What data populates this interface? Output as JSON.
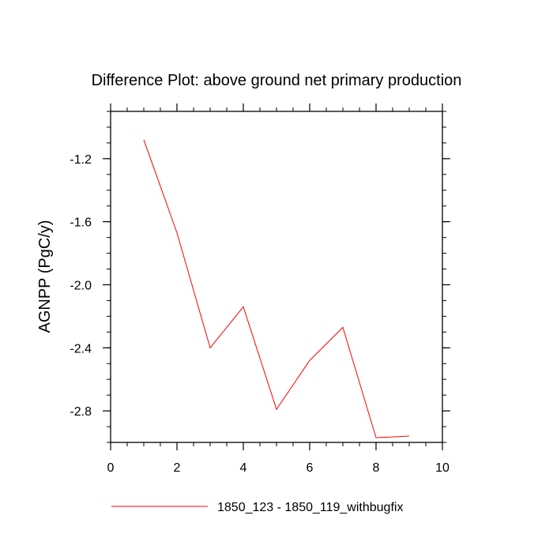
{
  "chart_data": {
    "type": "line",
    "title": "Difference Plot: above ground net primary production",
    "xlabel": "",
    "ylabel": "AGNPP  (PgC/y)",
    "xlim": [
      0,
      10
    ],
    "ylim": [
      -3.0,
      -0.9
    ],
    "xticks": [
      0,
      2,
      4,
      6,
      8,
      10
    ],
    "xtick_labels": [
      "0",
      "2",
      "4",
      "6",
      "8",
      "10"
    ],
    "yticks": [
      -1.2,
      -1.6,
      -2.0,
      -2.4,
      -2.8
    ],
    "ytick_labels": [
      "-1.2",
      "-1.6",
      "-2.0",
      "-2.4",
      "-2.8"
    ],
    "x_minor_step": 0.5,
    "y_minor_step": 0.1,
    "grid": false,
    "legend_position": "bottom",
    "series": [
      {
        "name": "1850_123 - 1850_119_withbugfix",
        "color": "#ff0000",
        "x": [
          1,
          2,
          3,
          4,
          5,
          6,
          7,
          8,
          9
        ],
        "y": [
          -1.08,
          -1.67,
          -2.4,
          -2.14,
          -2.79,
          -2.48,
          -2.27,
          -2.97,
          -2.96
        ]
      }
    ]
  }
}
